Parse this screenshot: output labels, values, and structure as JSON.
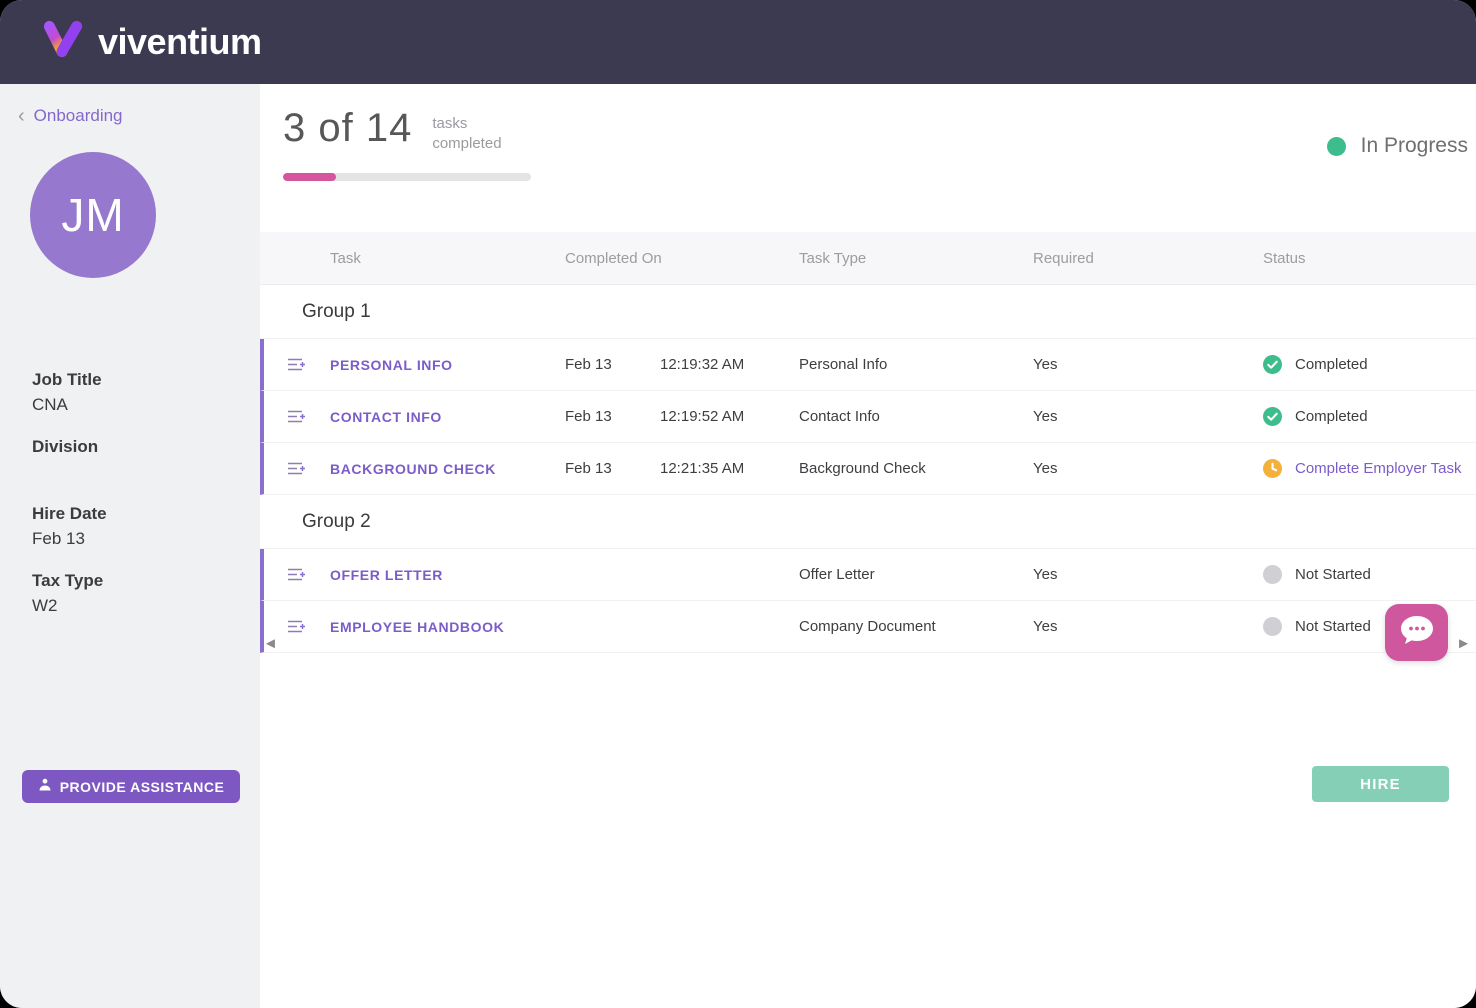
{
  "header": {
    "brand": "viventium"
  },
  "sidebar": {
    "back_label": "Onboarding",
    "avatar_initials": "JM",
    "fields": [
      {
        "label": "Job Title",
        "value": "CNA"
      },
      {
        "label": "Division",
        "value": ""
      },
      {
        "label": "Hire Date",
        "value": "Feb 13"
      },
      {
        "label": "Tax Type",
        "value": "W2"
      }
    ],
    "assist_button_label": "PROVIDE ASSISTANCE"
  },
  "progress": {
    "count": "3 of 14",
    "caption_line1": "tasks",
    "caption_line2": "completed",
    "percent": 21.4
  },
  "status_badge": {
    "label": "In Progress"
  },
  "table": {
    "columns": [
      "Task",
      "Completed On",
      "Task Type",
      "Required",
      "Status"
    ],
    "groups": [
      {
        "label": "Group 1",
        "rows": [
          {
            "task": "PERSONAL INFO",
            "date": "Feb 13",
            "time": "12:19:32 AM",
            "type": "Personal Info",
            "required": "Yes",
            "status": "Completed",
            "status_kind": "completed"
          },
          {
            "task": "CONTACT INFO",
            "date": "Feb 13",
            "time": "12:19:52 AM",
            "type": "Contact Info",
            "required": "Yes",
            "status": "Completed",
            "status_kind": "completed"
          },
          {
            "task": "BACKGROUND CHECK",
            "date": "Feb 13",
            "time": "12:21:35 AM",
            "type": "Background Check",
            "required": "Yes",
            "status": "Complete Employer Task",
            "status_kind": "employer"
          }
        ]
      },
      {
        "label": "Group 2",
        "rows": [
          {
            "task": "OFFER LETTER",
            "date": "",
            "time": "",
            "type": "Offer Letter",
            "required": "Yes",
            "status": "Not Started",
            "status_kind": "not_started"
          },
          {
            "task": "EMPLOYEE HANDBOOK",
            "date": "",
            "time": "",
            "type": "Company Document",
            "required": "Yes",
            "status": "Not Started",
            "status_kind": "not_started"
          }
        ]
      }
    ]
  },
  "actions": {
    "hire_label": "HIRE"
  },
  "scroll": {
    "left_arrow": "◄",
    "right_arrow": "►",
    "back_chevron": "‹"
  },
  "colors": {
    "topbar": "#3c3a51",
    "accent_purple": "#7b5cc9",
    "progress_pink": "#d5569d",
    "status_green": "#3dbd8c",
    "status_orange": "#f3b13c",
    "status_gray": "#cfcfd4",
    "hire_teal": "#85cfb6",
    "chat_pink": "#cf579d",
    "avatar_purple": "#9678cf"
  }
}
